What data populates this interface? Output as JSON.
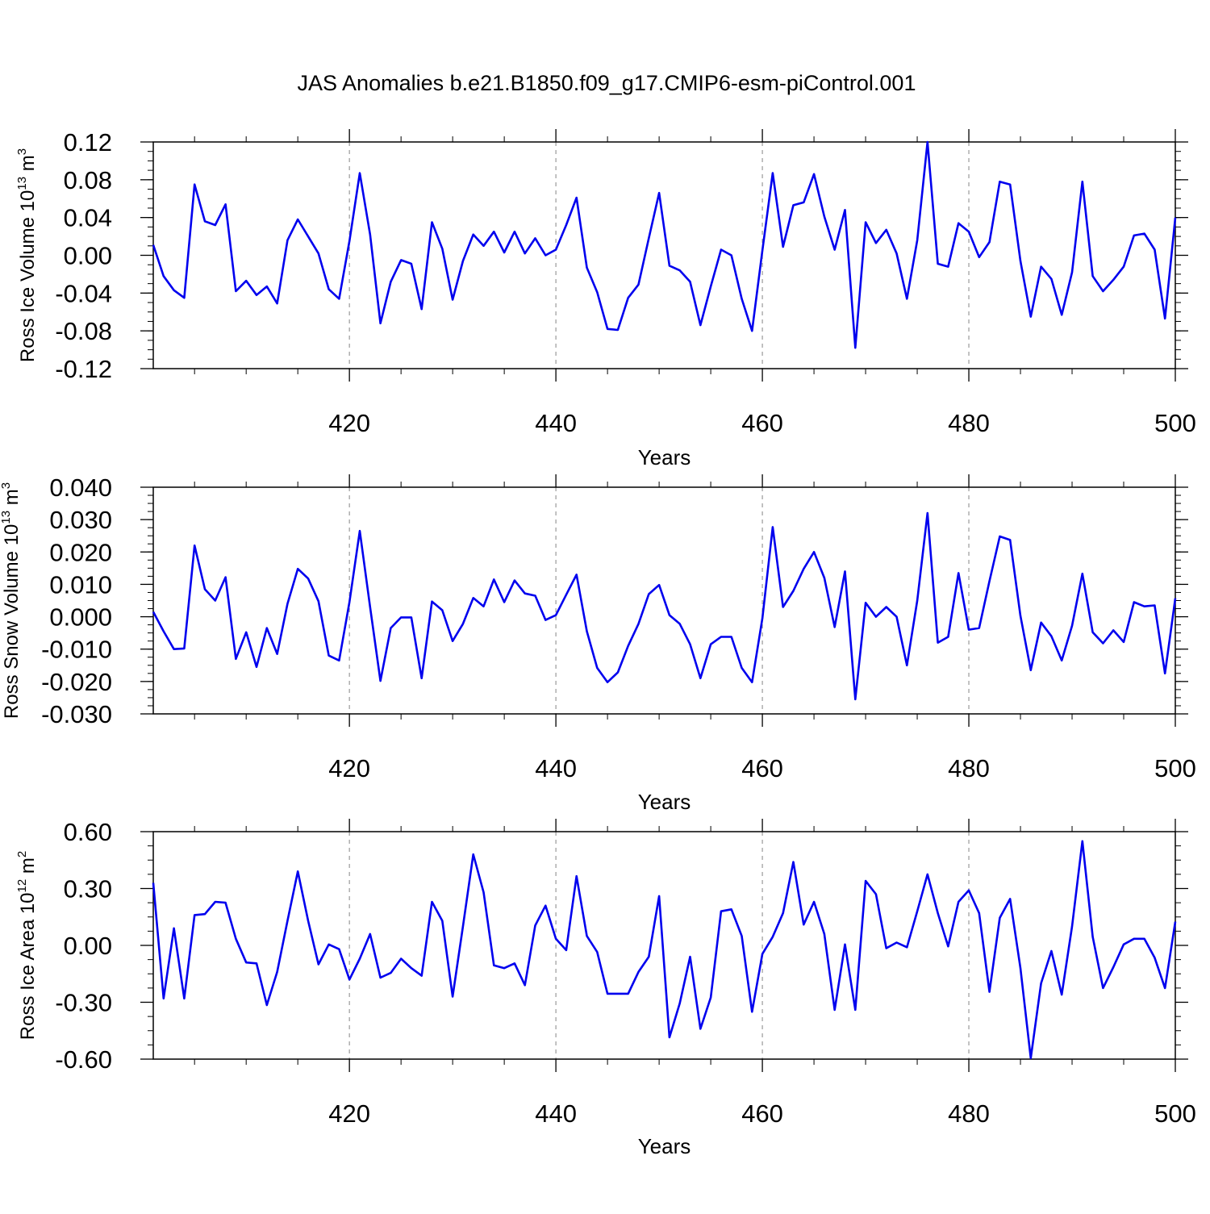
{
  "title": "JAS Anomalies b.e21.B1850.f09_g17.CMIP6-esm-piControl.001",
  "line_color": "#0000ee",
  "chart_data": [
    {
      "type": "line",
      "title": "JAS Anomalies b.e21.B1850.f09_g17.CMIP6-esm-piControl.001",
      "xlabel": "Years",
      "ylabel": {
        "text": "Ross Ice Volume 10",
        "exp": "13",
        "unit": " m",
        "unit_exp": "3"
      },
      "xlim": [
        401,
        500
      ],
      "ylim": [
        -0.12,
        0.12
      ],
      "xticks": [
        "420",
        "440",
        "460",
        "480",
        "500"
      ],
      "yticks": [
        "0.12",
        "0.08",
        "0.04",
        "0.00",
        "-0.04",
        "-0.08",
        "-0.12"
      ],
      "x": [
        401,
        402,
        403,
        404,
        405,
        406,
        407,
        408,
        409,
        410,
        411,
        412,
        413,
        414,
        415,
        416,
        417,
        418,
        419,
        420,
        421,
        422,
        423,
        424,
        425,
        426,
        427,
        428,
        429,
        430,
        431,
        432,
        433,
        434,
        435,
        436,
        437,
        438,
        439,
        440,
        441,
        442,
        443,
        444,
        445,
        446,
        447,
        448,
        449,
        450,
        451,
        452,
        453,
        454,
        455,
        456,
        457,
        458,
        459,
        460,
        461,
        462,
        463,
        464,
        465,
        466,
        467,
        468,
        469,
        470,
        471,
        472,
        473,
        474,
        475,
        476,
        477,
        478,
        479,
        480,
        481,
        482,
        483,
        484,
        485,
        486,
        487,
        488,
        489,
        490,
        491,
        492,
        493,
        494,
        495,
        496,
        497,
        498,
        499,
        500
      ],
      "series": [
        {
          "name": "Ross Ice Volume",
          "values": [
            0.011,
            -0.022,
            -0.037,
            -0.045,
            0.075,
            0.036,
            0.032,
            0.054,
            -0.038,
            -0.027,
            -0.042,
            -0.033,
            -0.051,
            0.016,
            0.038,
            0.02,
            0.002,
            -0.036,
            -0.046,
            0.015,
            0.087,
            0.022,
            -0.072,
            -0.028,
            -0.005,
            -0.009,
            -0.057,
            0.035,
            0.007,
            -0.047,
            -0.006,
            0.022,
            0.01,
            0.025,
            0.003,
            0.025,
            0.002,
            0.018,
            0.0,
            0.006,
            0.032,
            0.061,
            -0.013,
            -0.039,
            -0.078,
            -0.079,
            -0.045,
            -0.031,
            0.018,
            0.066,
            -0.011,
            -0.016,
            -0.028,
            -0.074,
            -0.033,
            0.006,
            0.0,
            -0.046,
            -0.08,
            0.005,
            0.087,
            0.009,
            0.053,
            0.056,
            0.086,
            0.041,
            0.006,
            0.048,
            -0.098,
            0.035,
            0.013,
            0.027,
            0.002,
            -0.046,
            0.016,
            0.12,
            -0.009,
            -0.012,
            0.034,
            0.025,
            -0.002,
            0.014,
            0.078,
            0.075,
            -0.006,
            -0.065,
            -0.012,
            -0.025,
            -0.063,
            -0.018,
            0.078,
            -0.022,
            -0.038,
            -0.026,
            -0.012,
            0.021,
            0.023,
            0.006,
            -0.067,
            0.04
          ]
        }
      ]
    },
    {
      "type": "line",
      "xlabel": "Years",
      "ylabel": {
        "text": "Ross Snow Volume 10",
        "exp": "13",
        "unit": " m",
        "unit_exp": "3"
      },
      "xlim": [
        401,
        500
      ],
      "ylim": [
        -0.03,
        0.04
      ],
      "xticks": [
        "420",
        "440",
        "460",
        "480",
        "500"
      ],
      "yticks": [
        "0.040",
        "0.030",
        "0.020",
        "0.010",
        "0.000",
        "-0.010",
        "-0.020",
        "-0.030"
      ],
      "x": [
        401,
        402,
        403,
        404,
        405,
        406,
        407,
        408,
        409,
        410,
        411,
        412,
        413,
        414,
        415,
        416,
        417,
        418,
        419,
        420,
        421,
        422,
        423,
        424,
        425,
        426,
        427,
        428,
        429,
        430,
        431,
        432,
        433,
        434,
        435,
        436,
        437,
        438,
        439,
        440,
        441,
        442,
        443,
        444,
        445,
        446,
        447,
        448,
        449,
        450,
        451,
        452,
        453,
        454,
        455,
        456,
        457,
        458,
        459,
        460,
        461,
        462,
        463,
        464,
        465,
        466,
        467,
        468,
        469,
        470,
        471,
        472,
        473,
        474,
        475,
        476,
        477,
        478,
        479,
        480,
        481,
        482,
        483,
        484,
        485,
        486,
        487,
        488,
        489,
        490,
        491,
        492,
        493,
        494,
        495,
        496,
        497,
        498,
        499,
        500
      ],
      "series": [
        {
          "name": "Ross Snow Volume",
          "values": [
            0.0015,
            -0.0045,
            -0.01,
            -0.0098,
            0.022,
            0.0085,
            0.005,
            0.0122,
            -0.013,
            -0.0048,
            -0.0155,
            -0.0035,
            -0.0115,
            0.004,
            0.0148,
            0.0118,
            0.0048,
            -0.012,
            -0.0135,
            0.0045,
            0.0265,
            0.003,
            -0.0198,
            -0.0035,
            -0.0002,
            -0.0002,
            -0.019,
            0.0047,
            0.002,
            -0.0075,
            -0.0022,
            0.0058,
            0.0032,
            0.0115,
            0.0045,
            0.0112,
            0.0072,
            0.0065,
            -0.001,
            0.0005,
            0.0068,
            0.013,
            -0.0045,
            -0.0158,
            -0.0202,
            -0.0172,
            -0.009,
            -0.0022,
            0.007,
            0.0098,
            0.0005,
            -0.0022,
            -0.0085,
            -0.019,
            -0.0085,
            -0.0062,
            -0.0062,
            -0.0158,
            -0.0202,
            -0.0005,
            0.0277,
            0.003,
            0.008,
            0.0148,
            0.02,
            0.012,
            -0.0032,
            0.014,
            -0.0255,
            0.0043,
            0.0,
            0.003,
            0.0,
            -0.015,
            0.005,
            0.032,
            -0.008,
            -0.0062,
            0.0135,
            -0.004,
            -0.0035,
            0.011,
            0.0248,
            0.0237,
            0.0003,
            -0.0165,
            -0.0018,
            -0.006,
            -0.0135,
            -0.0028,
            0.0133,
            -0.0048,
            -0.0082,
            -0.0042,
            -0.0078,
            0.0045,
            0.0032,
            0.0035,
            -0.0175,
            0.0057
          ]
        }
      ]
    },
    {
      "type": "line",
      "xlabel": "Years",
      "ylabel": {
        "text": "Ross Ice Area 10",
        "exp": "12",
        "unit": " m",
        "unit_exp": "2"
      },
      "xlim": [
        401,
        500
      ],
      "ylim": [
        -0.6,
        0.6
      ],
      "xticks": [
        "420",
        "440",
        "460",
        "480",
        "500"
      ],
      "yticks": [
        "0.60",
        "0.30",
        "0.00",
        "-0.30",
        "-0.60"
      ],
      "x": [
        401,
        402,
        403,
        404,
        405,
        406,
        407,
        408,
        409,
        410,
        411,
        412,
        413,
        414,
        415,
        416,
        417,
        418,
        419,
        420,
        421,
        422,
        423,
        424,
        425,
        426,
        427,
        428,
        429,
        430,
        431,
        432,
        433,
        434,
        435,
        436,
        437,
        438,
        439,
        440,
        441,
        442,
        443,
        444,
        445,
        446,
        447,
        448,
        449,
        450,
        451,
        452,
        453,
        454,
        455,
        456,
        457,
        458,
        459,
        460,
        461,
        462,
        463,
        464,
        465,
        466,
        467,
        468,
        469,
        470,
        471,
        472,
        473,
        474,
        475,
        476,
        477,
        478,
        479,
        480,
        481,
        482,
        483,
        484,
        485,
        486,
        487,
        488,
        489,
        490,
        491,
        492,
        493,
        494,
        495,
        496,
        497,
        498,
        499,
        500
      ],
      "series": [
        {
          "name": "Ross Ice Area",
          "values": [
            0.33,
            -0.28,
            0.09,
            -0.28,
            0.16,
            0.165,
            0.23,
            0.225,
            0.035,
            -0.09,
            -0.095,
            -0.315,
            -0.14,
            0.13,
            0.39,
            0.13,
            -0.1,
            0.005,
            -0.02,
            -0.18,
            -0.07,
            0.06,
            -0.17,
            -0.145,
            -0.07,
            -0.12,
            -0.16,
            0.23,
            0.13,
            -0.27,
            0.1,
            0.48,
            0.28,
            -0.105,
            -0.12,
            -0.095,
            -0.21,
            0.105,
            0.21,
            0.035,
            -0.025,
            0.365,
            0.05,
            -0.035,
            -0.255,
            -0.255,
            -0.255,
            -0.14,
            -0.06,
            0.26,
            -0.485,
            -0.305,
            -0.06,
            -0.44,
            -0.275,
            0.18,
            0.19,
            0.05,
            -0.35,
            -0.045,
            0.045,
            0.17,
            0.44,
            0.11,
            0.23,
            0.06,
            -0.34,
            0.005,
            -0.34,
            0.34,
            0.27,
            -0.015,
            0.015,
            -0.01,
            0.18,
            0.375,
            0.17,
            -0.005,
            0.23,
            0.29,
            0.17,
            -0.245,
            0.145,
            0.245,
            -0.12,
            -0.595,
            -0.2,
            -0.03,
            -0.26,
            0.1,
            0.55,
            0.045,
            -0.225,
            -0.115,
            0.005,
            0.035,
            0.035,
            -0.065,
            -0.225,
            0.125
          ]
        }
      ]
    }
  ]
}
